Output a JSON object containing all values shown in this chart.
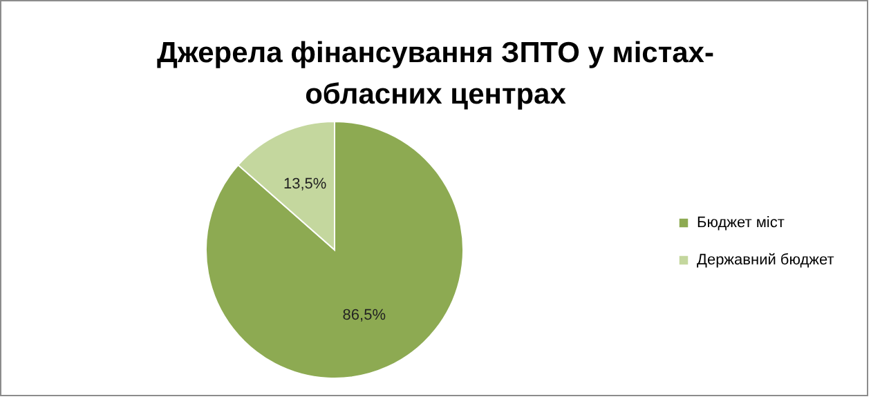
{
  "chart_data": {
    "type": "pie",
    "title": "Джерела фінансування ЗПТО у містах-обласних центрах",
    "categories": [
      "Бюджет міст",
      "Державний бюджет"
    ],
    "values": [
      86.5,
      13.5
    ],
    "colors": [
      "#8daa52",
      "#c4d79e"
    ],
    "value_labels": [
      "86,5%",
      "13,5%"
    ],
    "legend": "right"
  }
}
